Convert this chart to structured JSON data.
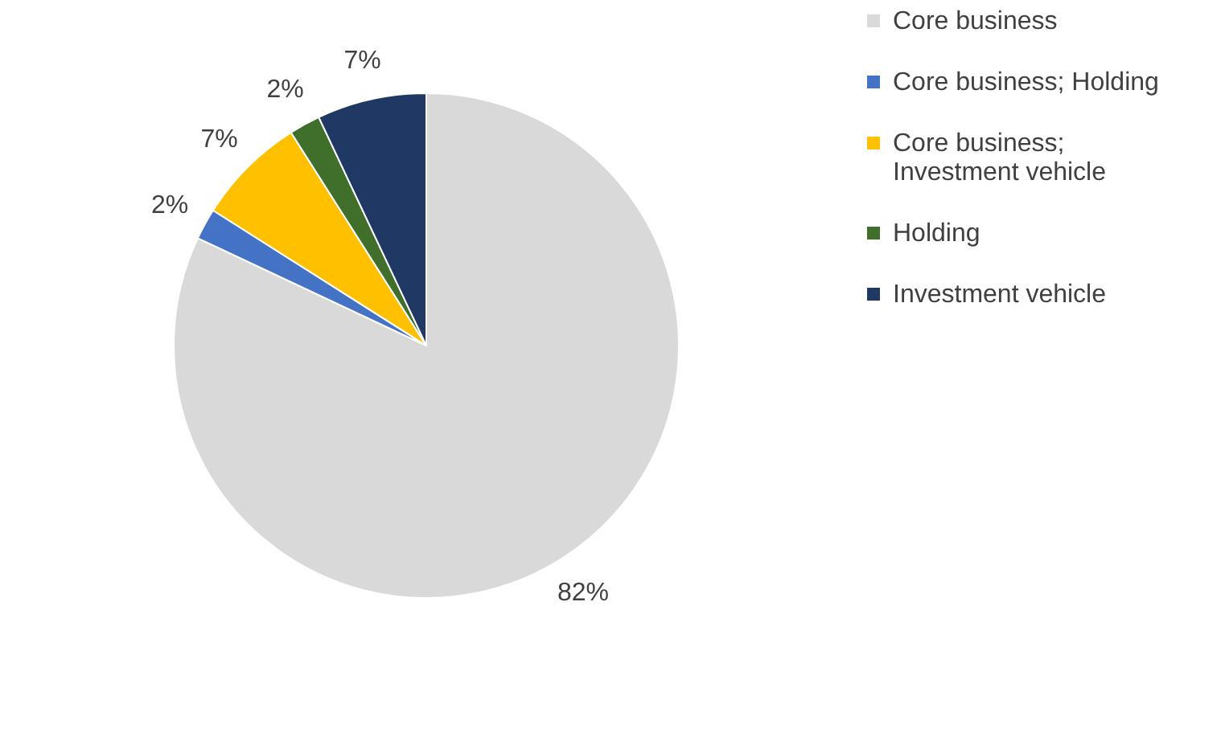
{
  "chart_data": {
    "type": "pie",
    "categories": [
      "Core business",
      "Core business; Holding",
      "Core business; Investment vehicle",
      "Holding",
      "Investment vehicle"
    ],
    "values": [
      82,
      2,
      7,
      2,
      7
    ],
    "colors": [
      "#d9d9d9",
      "#4472c4",
      "#ffc000",
      "#3f6f2a",
      "#203864"
    ],
    "value_labels": [
      "82%",
      "2%",
      "7%",
      "2%",
      "7%"
    ],
    "legend": "right"
  }
}
